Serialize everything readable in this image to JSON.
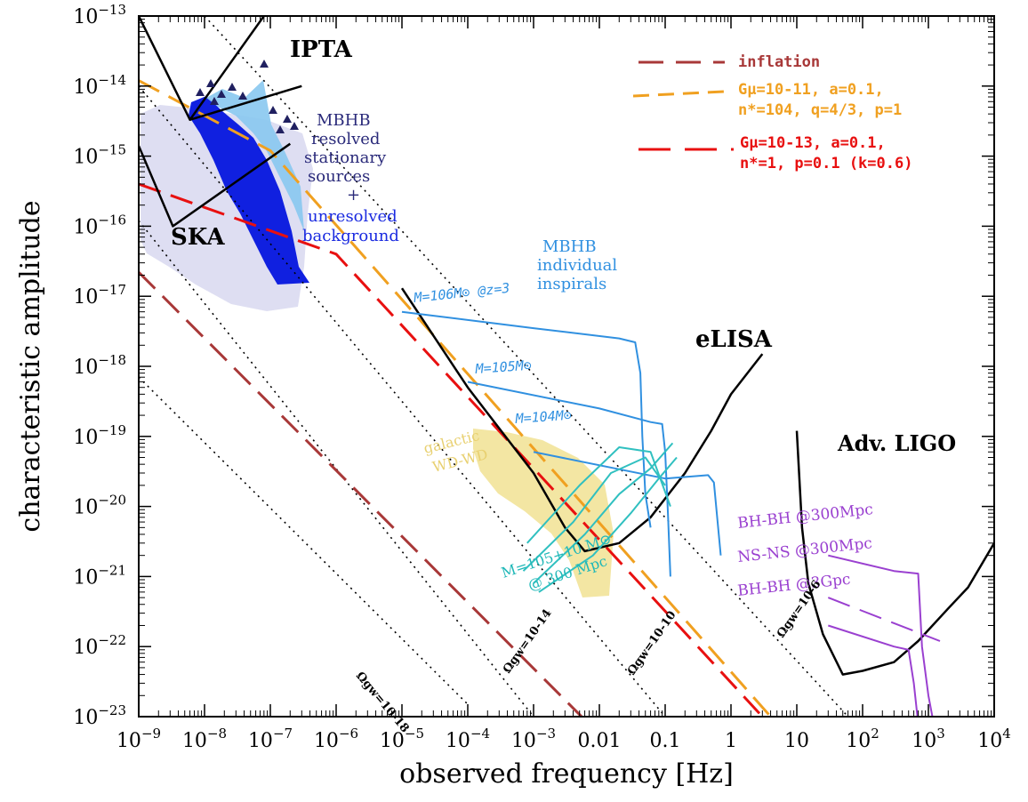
{
  "chart_data": {
    "type": "line",
    "xlabel": "observed frequency [Hz]",
    "ylabel": "characteristic amplitude",
    "xscale": "log",
    "yscale": "log",
    "xlim": [
      1e-09,
      10000.0
    ],
    "ylim": [
      1e-23,
      1e-13
    ],
    "grid": false,
    "x_tick_labels": [
      "10-9",
      "10-8",
      "10-7",
      "10-6",
      "10-5",
      "10-4",
      "10-3",
      "0.01",
      "0.1",
      "1",
      "10",
      "102",
      "103",
      "104"
    ],
    "y_tick_labels": [
      "10-13",
      "10-14",
      "10-15",
      "10-16",
      "10-17",
      "10-18",
      "10-19",
      "10-20",
      "10-21",
      "10-22",
      "10-23"
    ],
    "legend": {
      "placement": "top-right",
      "entries": [
        {
          "label": "inflation",
          "color": "#a83838",
          "style": "dashed"
        },
        {
          "label": "Gμ=10-11, a=0.1,",
          "label2": "n*=104, q=4/3, p=1",
          "color": "#f0a020",
          "style": "dashed"
        },
        {
          "label": "Gμ=10-13, a=0.1,",
          "label2": "n*=1, p=0.1 (k=0.6)",
          "color": "#e81010",
          "style": "dashed"
        }
      ]
    },
    "annotations": {
      "ipta": "IPTA",
      "ska": "SKA",
      "elisa": "eLISA",
      "ligo": "Adv. LIGO",
      "mbhb_res": [
        "MBHB",
        "resolved",
        "stationary",
        "sources",
        "+",
        "unresolved",
        "background"
      ],
      "mbhb_ind": [
        "MBHB",
        "individual",
        "inspirals"
      ],
      "m6": "M=106M⊙ @z=3",
      "m5": "M=105M⊙",
      "m4": "M=104M⊙",
      "galactic": [
        "galactic",
        "WD-WD"
      ],
      "m5plus10": [
        "M=105+10 M⊙",
        "@ 300 Mpc"
      ],
      "bhbh300": "BH-BH @300Mpc",
      "nsns300": "NS-NS @300Mpc",
      "bhbh3g": "BH-BH @3Gpc",
      "omega18": "Ωgw=10-18",
      "omega14": "Ωgw=10-14",
      "omega10": "Ωgw=10-10",
      "omega6": "Ωgw=10-6"
    },
    "series": [
      {
        "name": "",
        "kind": "omega",
        "color": "#000000",
        "style": "dotted",
        "points": [
          [
            1e-09,
            7e-19
          ],
          [
            0.0001,
            1.5e-23
          ]
        ]
      },
      {
        "name": "",
        "kind": "omega",
        "color": "#000000",
        "style": "dotted",
        "points": [
          [
            1e-09,
            1.2e-16
          ],
          [
            0.001,
            1e-23
          ]
        ]
      },
      {
        "name": "",
        "kind": "omega",
        "color": "#000000",
        "style": "dotted",
        "points": [
          [
            1e-09,
            1e-14
          ],
          [
            0.1,
            1e-23
          ]
        ]
      },
      {
        "name": "",
        "kind": "omega",
        "color": "#000000",
        "style": "dotted",
        "points": [
          [
            1e-08,
            1e-13
          ],
          [
            60,
            1e-23
          ]
        ]
      },
      {
        "name": "inflation",
        "color": "#a83838",
        "style": "dashed",
        "points": [
          [
            1e-09,
            2.2e-17
          ],
          [
            0.006,
            9e-24
          ]
        ]
      },
      {
        "name": "",
        "color": "#f0a020",
        "style": "dashed",
        "points": [
          [
            1e-09,
            1.2e-14
          ],
          [
            1e-07,
            1.2e-15
          ],
          [
            4,
            1e-23
          ]
        ]
      },
      {
        "name": "",
        "color": "#e81010",
        "style": "dashed",
        "points": [
          [
            1e-09,
            4e-16
          ],
          [
            1e-06,
            4e-17
          ],
          [
            3,
            1e-23
          ]
        ]
      },
      {
        "name": "IPTA",
        "color": "#000000",
        "style": "solid",
        "points": [
          [
            1e-09,
            1e-13
          ],
          [
            6e-09,
            3.3e-15
          ],
          [
            8e-08,
            1e-13
          ]
        ]
      },
      {
        "name": "",
        "color": "#000000",
        "style": "solid",
        "points": [
          [
            6e-09,
            3.3e-15
          ],
          [
            3e-07,
            1e-14
          ]
        ]
      },
      {
        "name": "SKA",
        "color": "#000000",
        "style": "solid",
        "points": [
          [
            1e-09,
            1.4e-15
          ],
          [
            3.3e-09,
            1e-16
          ],
          [
            2e-07,
            1.5e-15
          ]
        ]
      },
      {
        "name": "eLISA",
        "color": "#000000",
        "style": "solid",
        "points": [
          [
            1e-05,
            1.3e-17
          ],
          [
            0.0001,
            5e-19
          ],
          [
            0.001,
            3e-20
          ],
          [
            0.003,
            5e-21
          ],
          [
            0.006,
            2.3e-21
          ],
          [
            0.02,
            3e-21
          ],
          [
            0.06,
            7e-21
          ],
          [
            0.2,
            3e-20
          ],
          [
            0.5,
            1.2e-19
          ],
          [
            1,
            4e-19
          ],
          [
            3,
            1.5e-18
          ]
        ]
      },
      {
        "name": "Adv. LIGO",
        "color": "#000000",
        "style": "solid",
        "points": [
          [
            10,
            1.2e-19
          ],
          [
            12,
            5e-21
          ],
          [
            15,
            8e-22
          ],
          [
            25,
            1.5e-22
          ],
          [
            50,
            4e-23
          ],
          [
            100,
            4.5e-23
          ],
          [
            300,
            6e-23
          ],
          [
            700,
            1.2e-22
          ],
          [
            2000,
            3.5e-22
          ],
          [
            4000,
            7e-22
          ],
          [
            10000.0,
            3e-21
          ]
        ]
      },
      {
        "name": "",
        "kind": "mbhb",
        "color": "#3090e0",
        "style": "solid",
        "points": [
          [
            1e-05,
            6e-18
          ],
          [
            0.001,
            3.5e-18
          ],
          [
            0.02,
            2.5e-18
          ],
          [
            0.035,
            2.2e-18
          ],
          [
            0.042,
            8e-19
          ],
          [
            0.045,
            1e-19
          ],
          [
            0.05,
            1.5e-20
          ],
          [
            0.06,
            5e-21
          ]
        ]
      },
      {
        "name": "",
        "kind": "mbhb",
        "color": "#3090e0",
        "style": "solid",
        "points": [
          [
            0.0001,
            6e-19
          ],
          [
            0.01,
            2.5e-19
          ],
          [
            0.06,
            1.6e-19
          ],
          [
            0.09,
            1.5e-19
          ],
          [
            0.1,
            6e-20
          ],
          [
            0.11,
            8e-21
          ],
          [
            0.12,
            1e-21
          ]
        ]
      },
      {
        "name": "",
        "kind": "mbhb",
        "color": "#3090e0",
        "style": "solid",
        "points": [
          [
            0.001,
            6e-20
          ],
          [
            0.1,
            2.5e-20
          ],
          [
            0.45,
            2.8e-20
          ],
          [
            0.55,
            2.2e-20
          ],
          [
            0.7,
            2e-21
          ]
        ]
      },
      {
        "name": "",
        "kind": "mbhb",
        "color": "#30c0c0",
        "style": "solid",
        "points": [
          [
            0.0008,
            3e-21
          ],
          [
            0.005,
            2e-20
          ],
          [
            0.02,
            7e-20
          ],
          [
            0.06,
            6e-20
          ],
          [
            0.12,
            1e-20
          ]
        ]
      },
      {
        "name": "",
        "kind": "mbhb",
        "color": "#30c0c0",
        "style": "solid",
        "points": [
          [
            0.0007,
            1.2e-21
          ],
          [
            0.004,
            6e-21
          ],
          [
            0.015,
            3e-20
          ],
          [
            0.05,
            5e-20
          ],
          [
            0.1,
            2e-20
          ]
        ]
      },
      {
        "name": "",
        "kind": "mbhb",
        "color": "#30c0c0",
        "style": "solid",
        "points": [
          [
            0.001,
            8e-22
          ],
          [
            0.006,
            4e-21
          ],
          [
            0.02,
            1.5e-20
          ],
          [
            0.06,
            3.5e-20
          ],
          [
            0.13,
            8e-20
          ]
        ]
      },
      {
        "name": "",
        "kind": "mbhb",
        "color": "#30c0c0",
        "style": "solid",
        "points": [
          [
            0.0012,
            6e-22
          ],
          [
            0.008,
            2e-21
          ],
          [
            0.03,
            8e-21
          ],
          [
            0.08,
            2.5e-20
          ],
          [
            0.15,
            5e-20
          ]
        ]
      },
      {
        "name": "",
        "kind": "ligo",
        "color": "#9a40d0",
        "style": "solid",
        "points": [
          [
            30,
            2e-21
          ],
          [
            300,
            1.2e-21
          ],
          [
            700,
            1.1e-21
          ],
          [
            800,
            1e-22
          ],
          [
            1000,
            2e-23
          ],
          [
            1200,
            8e-24
          ]
        ]
      },
      {
        "name": "",
        "kind": "ligo",
        "color": "#9a40d0",
        "style": "dashed",
        "points": [
          [
            30,
            5e-22
          ],
          [
            1500,
            1.2e-22
          ]
        ]
      },
      {
        "name": "",
        "kind": "ligo",
        "color": "#9a40d0",
        "style": "solid",
        "points": [
          [
            30,
            2e-22
          ],
          [
            300,
            1e-22
          ],
          [
            500,
            9e-23
          ],
          [
            600,
            3e-23
          ],
          [
            700,
            8e-24
          ]
        ]
      }
    ]
  }
}
